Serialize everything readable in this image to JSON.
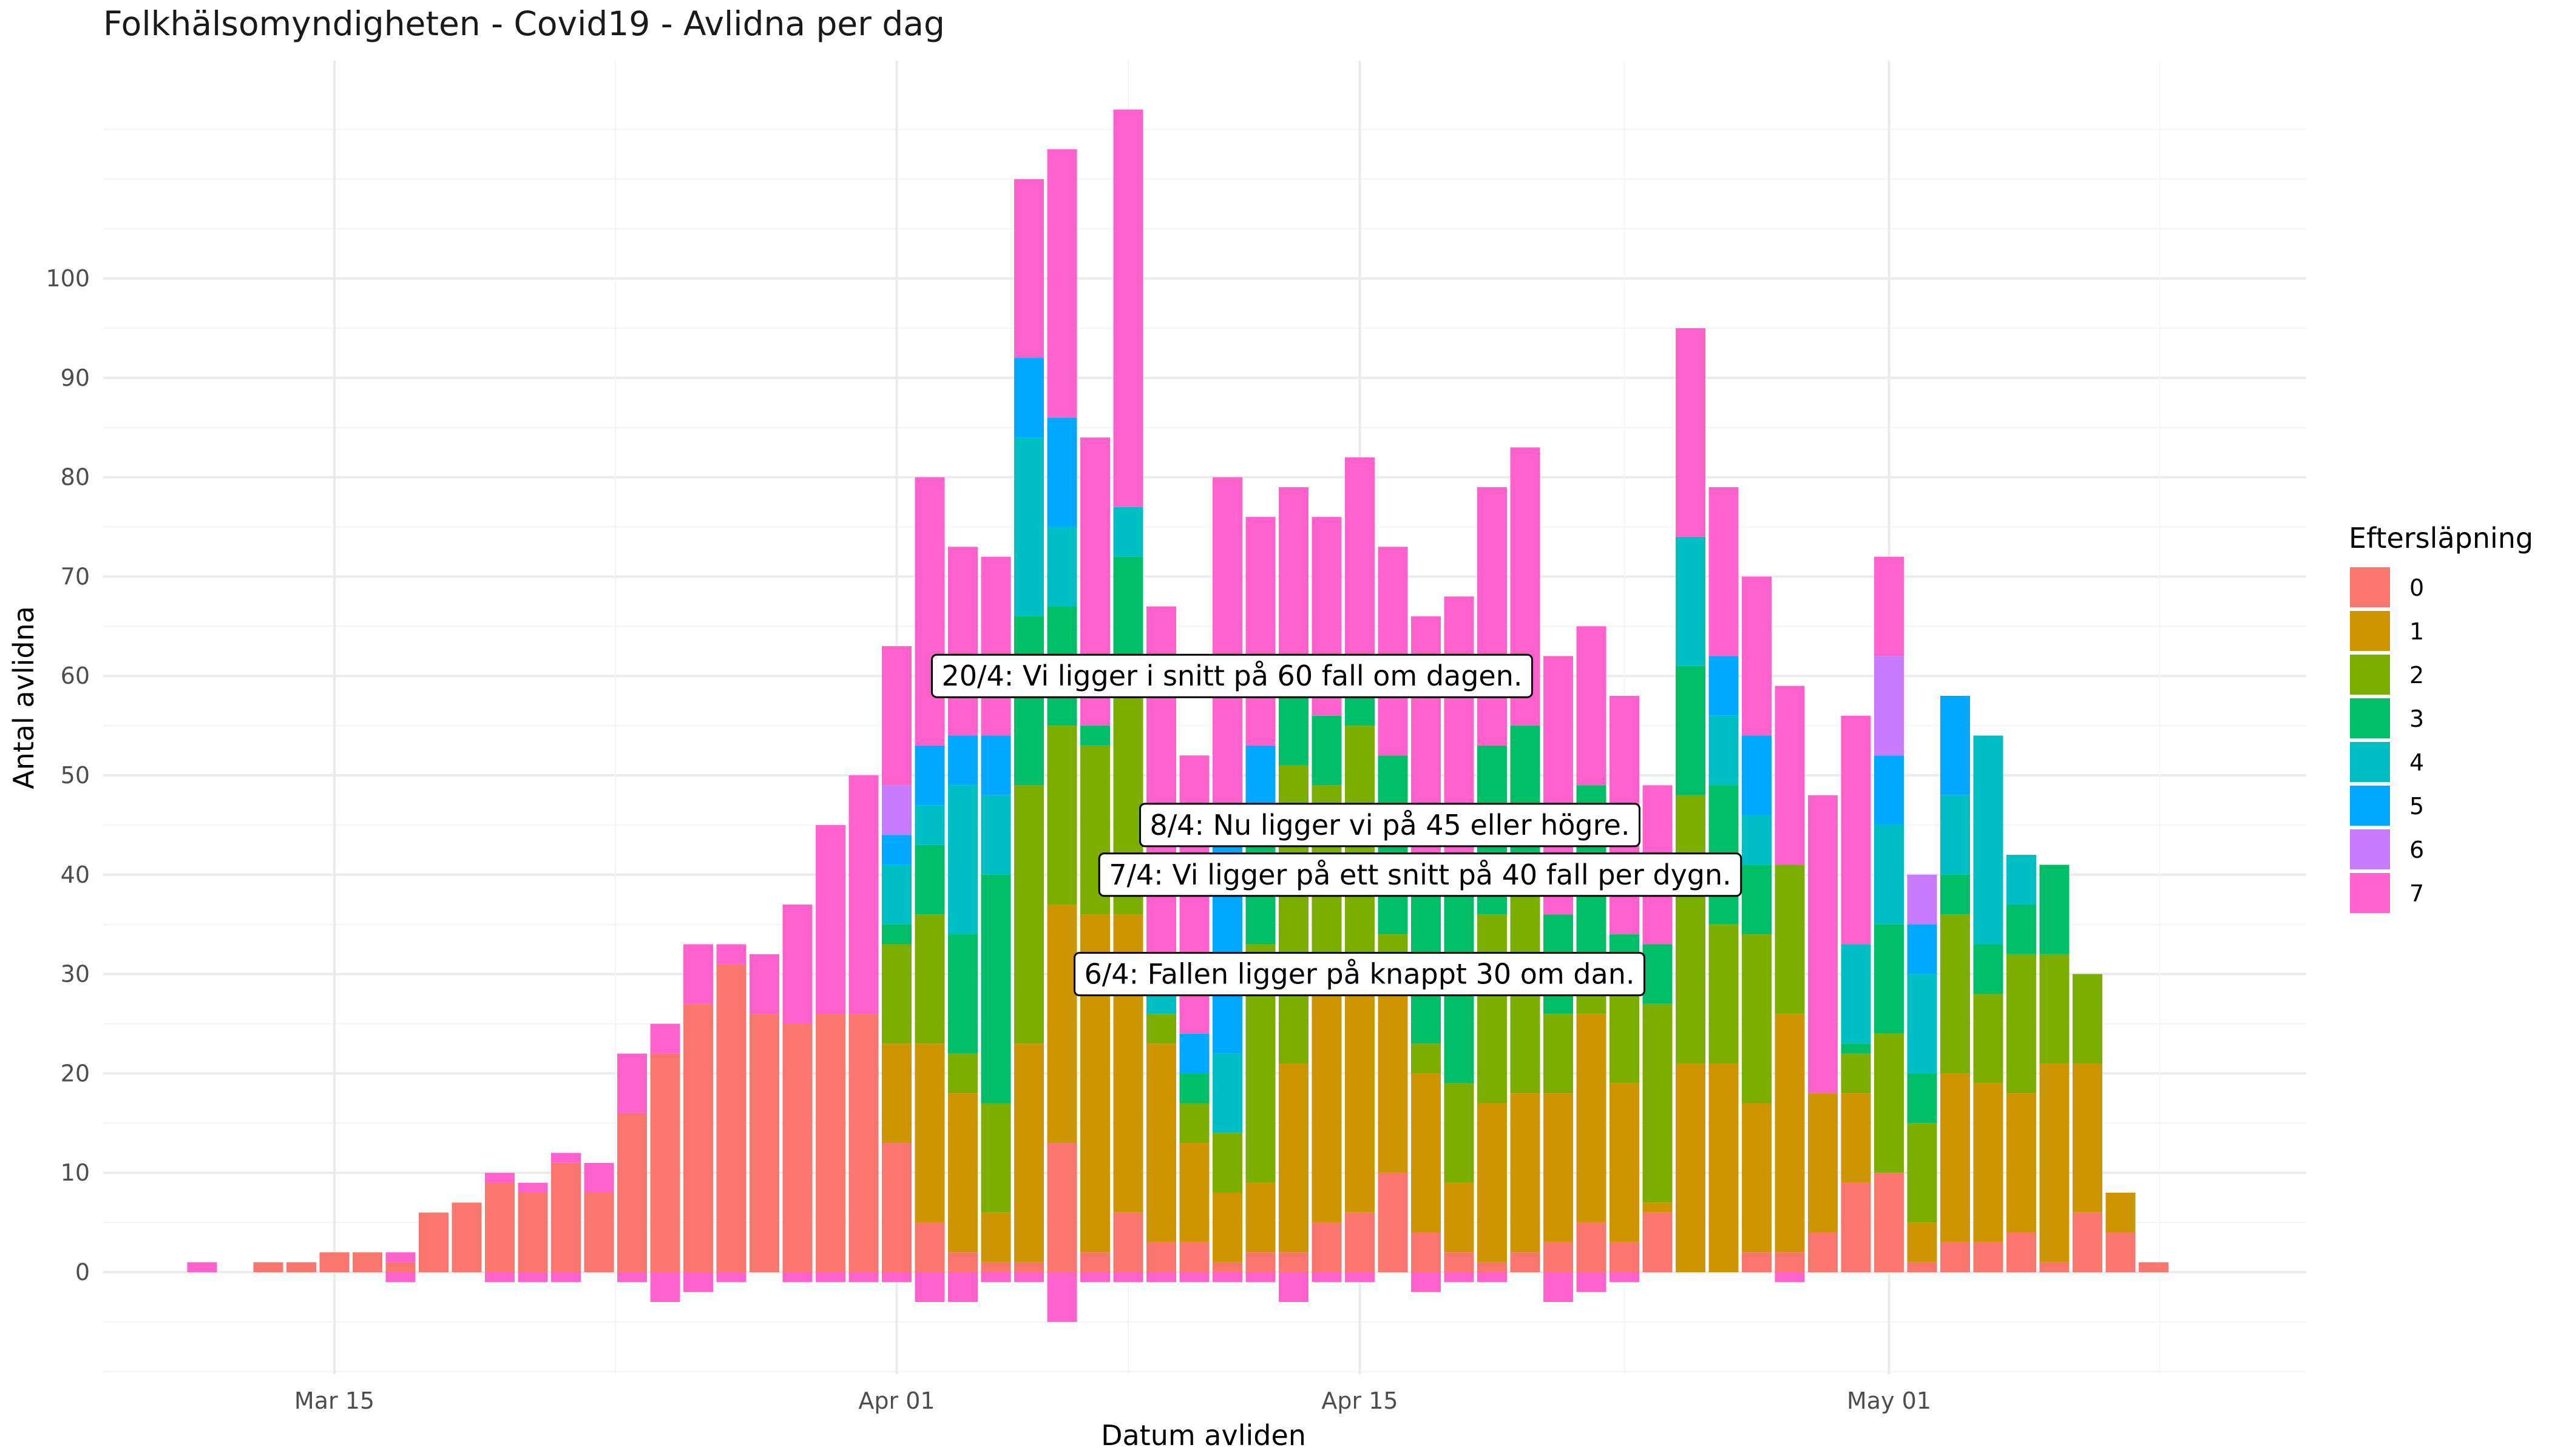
{
  "chart_data": {
    "type": "bar",
    "title": "Folkhälsomyndigheten - Covid19 - Avlidna per dag",
    "xlabel": "Datum avliden",
    "ylabel": "Antal avlidna",
    "x_ticks": [
      "Mar 15",
      "Apr 01",
      "Apr 15",
      "May 01"
    ],
    "y_ticks": [
      0,
      10,
      20,
      30,
      40,
      50,
      60,
      70,
      80,
      90,
      100
    ],
    "ylim": [
      -10,
      115
    ],
    "grid": true,
    "legend_position": "right",
    "legend_title": "Eftersläpning",
    "stacked": true,
    "categories": [
      "Mar 11",
      "Mar 12",
      "Mar 13",
      "Mar 14",
      "Mar 15",
      "Mar 16",
      "Mar 17",
      "Mar 18",
      "Mar 19",
      "Mar 20",
      "Mar 21",
      "Mar 22",
      "Mar 23",
      "Mar 24",
      "Mar 25",
      "Mar 26",
      "Mar 27",
      "Mar 28",
      "Mar 29",
      "Mar 30",
      "Mar 31",
      "Apr 01",
      "Apr 02",
      "Apr 03",
      "Apr 04",
      "Apr 05",
      "Apr 06",
      "Apr 07",
      "Apr 08",
      "Apr 09",
      "Apr 10",
      "Apr 11",
      "Apr 12",
      "Apr 13",
      "Apr 14",
      "Apr 15",
      "Apr 16",
      "Apr 17",
      "Apr 18",
      "Apr 19",
      "Apr 20",
      "Apr 21",
      "Apr 22",
      "Apr 23",
      "Apr 24",
      "Apr 25",
      "Apr 26",
      "Apr 27",
      "Apr 28",
      "Apr 29",
      "Apr 30",
      "May 01",
      "May 02",
      "May 03",
      "May 04",
      "May 05",
      "May 06",
      "May 07",
      "May 08",
      "May 09"
    ],
    "series": [
      {
        "name": "0",
        "color": "#F8766D",
        "values": [
          0,
          0,
          1,
          1,
          2,
          2,
          1,
          6,
          7,
          9,
          8,
          11,
          8,
          16,
          22,
          27,
          31,
          26,
          25,
          26,
          26,
          13,
          5,
          2,
          1,
          1,
          13,
          2,
          6,
          3,
          3,
          1,
          2,
          2,
          5,
          6,
          10,
          4,
          2,
          1,
          2,
          3,
          5,
          3,
          6,
          0,
          0,
          2,
          2,
          4,
          9,
          10,
          1,
          3,
          3,
          4,
          1,
          6,
          4,
          1
        ]
      },
      {
        "name": "1",
        "color": "#CD9600",
        "values": [
          0,
          0,
          0,
          0,
          0,
          0,
          0,
          0,
          0,
          0,
          0,
          0,
          0,
          0,
          0,
          0,
          0,
          0,
          0,
          0,
          0,
          10,
          18,
          16,
          5,
          22,
          24,
          34,
          30,
          20,
          10,
          7,
          7,
          19,
          25,
          26,
          21,
          16,
          7,
          16,
          16,
          15,
          21,
          16,
          1,
          21,
          21,
          15,
          24,
          14,
          9,
          0,
          4,
          17,
          16,
          14,
          20,
          15,
          4,
          0
        ]
      },
      {
        "name": "2",
        "color": "#7CAE00",
        "values": [
          0,
          0,
          0,
          0,
          0,
          0,
          0,
          0,
          0,
          0,
          0,
          0,
          0,
          0,
          0,
          0,
          0,
          0,
          0,
          0,
          0,
          10,
          13,
          4,
          11,
          26,
          18,
          17,
          24,
          3,
          4,
          6,
          24,
          30,
          19,
          23,
          3,
          3,
          10,
          19,
          20,
          8,
          5,
          11,
          20,
          27,
          14,
          17,
          15,
          0,
          4,
          14,
          10,
          16,
          9,
          14,
          11,
          9,
          0,
          0
        ]
      },
      {
        "name": "3",
        "color": "#00BE67",
        "values": [
          0,
          0,
          0,
          0,
          0,
          0,
          0,
          0,
          0,
          0,
          0,
          0,
          0,
          0,
          0,
          0,
          0,
          0,
          0,
          0,
          0,
          2,
          7,
          12,
          23,
          17,
          12,
          2,
          12,
          0,
          3,
          0,
          10,
          8,
          7,
          6,
          18,
          16,
          23,
          17,
          17,
          10,
          18,
          4,
          6,
          13,
          14,
          7,
          0,
          0,
          1,
          11,
          5,
          4,
          5,
          5,
          9,
          0,
          0,
          0
        ]
      },
      {
        "name": "4",
        "color": "#00BFC4",
        "values": [
          0,
          0,
          0,
          0,
          0,
          0,
          0,
          0,
          0,
          0,
          0,
          0,
          0,
          0,
          0,
          0,
          0,
          0,
          0,
          0,
          0,
          6,
          4,
          15,
          8,
          18,
          8,
          0,
          5,
          2,
          0,
          8,
          0,
          0,
          0,
          0,
          0,
          0,
          0,
          0,
          0,
          0,
          0,
          0,
          0,
          13,
          7,
          5,
          0,
          0,
          10,
          10,
          10,
          8,
          21,
          5,
          0,
          0,
          0,
          0
        ]
      },
      {
        "name": "5",
        "color": "#00A9FF",
        "values": [
          0,
          0,
          0,
          0,
          0,
          0,
          0,
          0,
          0,
          0,
          0,
          0,
          0,
          0,
          0,
          0,
          0,
          0,
          0,
          0,
          0,
          3,
          6,
          5,
          6,
          8,
          11,
          0,
          0,
          0,
          4,
          23,
          10,
          0,
          0,
          0,
          0,
          0,
          0,
          0,
          0,
          0,
          0,
          0,
          0,
          0,
          6,
          8,
          0,
          0,
          0,
          7,
          5,
          10,
          0,
          0,
          0,
          0,
          0,
          0
        ]
      },
      {
        "name": "6",
        "color": "#C77CFF",
        "values": [
          0,
          0,
          0,
          0,
          0,
          0,
          0,
          0,
          0,
          0,
          0,
          0,
          0,
          0,
          0,
          0,
          0,
          0,
          0,
          0,
          0,
          5,
          0,
          0,
          0,
          0,
          0,
          0,
          0,
          0,
          0,
          0,
          0,
          0,
          0,
          0,
          0,
          0,
          0,
          0,
          0,
          0,
          0,
          0,
          0,
          0,
          0,
          0,
          0,
          0,
          0,
          10,
          5,
          0,
          0,
          0,
          0,
          0,
          0,
          0
        ]
      },
      {
        "name": "7",
        "color": "#FF61CC",
        "values": [
          1,
          0,
          0,
          0,
          0,
          0,
          1,
          0,
          0,
          1,
          1,
          1,
          3,
          6,
          3,
          6,
          2,
          6,
          12,
          19,
          24,
          14,
          27,
          19,
          18,
          18,
          27,
          29,
          40,
          39,
          28,
          35,
          23,
          20,
          20,
          21,
          21,
          27,
          26,
          26,
          28,
          26,
          16,
          24,
          16,
          21,
          17,
          16,
          18,
          30,
          23,
          10,
          0,
          0,
          0,
          0,
          0,
          0,
          0,
          0
        ]
      },
      {
        "name": "7",
        "color": "#FF61CC",
        "negative_values": [
          0,
          0,
          0,
          0,
          0,
          0,
          -1,
          0,
          0,
          -1,
          -1,
          -1,
          0,
          -1,
          -3,
          -2,
          -1,
          0,
          -1,
          -1,
          -1,
          -1,
          -3,
          -3,
          -1,
          -1,
          -5,
          -1,
          -1,
          -1,
          -1,
          -1,
          -1,
          -3,
          -1,
          -1,
          0,
          -2,
          -1,
          -1,
          0,
          -3,
          -2,
          -1,
          0,
          0,
          0,
          0,
          -1,
          0,
          0,
          0,
          0,
          0,
          0,
          0,
          0,
          0,
          0,
          0
        ]
      }
    ],
    "annotations": [
      {
        "text": "20/4: Vi ligger i snitt på 60 fall om dagen.",
        "y": 60
      },
      {
        "text": "8/4: Nu ligger vi på 45 eller högre.",
        "y": 45
      },
      {
        "text": "7/4: Vi ligger på ett snitt på 40 fall per dygn.",
        "y": 40
      },
      {
        "text": "6/4: Fallen ligger på knappt 30 om dan.",
        "y": 30
      }
    ]
  }
}
